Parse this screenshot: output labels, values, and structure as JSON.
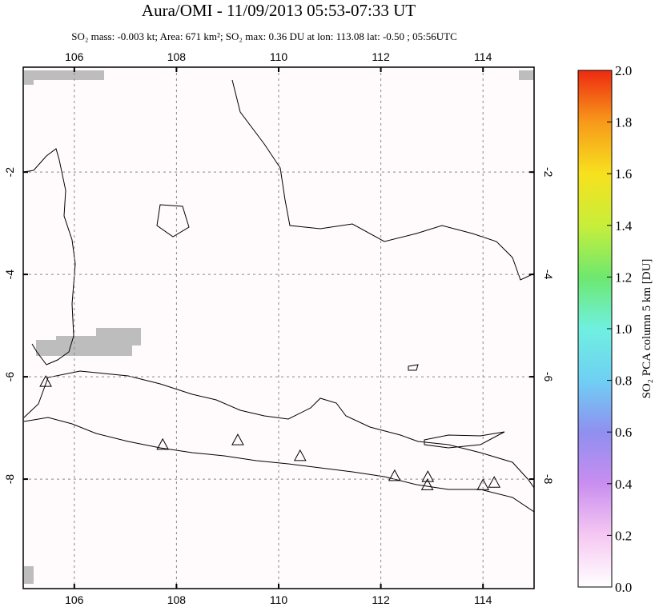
{
  "chart_data": {
    "type": "map",
    "title": "Aura/OMI - 11/09/2013 05:53-07:33 UT",
    "subtitle": "SO₂ mass: -0.003 kt; Area: 671 km²; SO₂ max: 0.36 DU at lon: 113.08 lat: -0.50 ; 05:56UTC",
    "xlim": [
      105,
      115
    ],
    "ylim": [
      -10.14,
      0.05
    ],
    "xticks": [
      106,
      108,
      110,
      112,
      114
    ],
    "yticks": [
      -2,
      -4,
      -6,
      -8
    ],
    "grid": true,
    "volcanoes": {
      "lon": [
        105.44,
        107.73,
        109.2,
        110.42,
        112.27,
        112.92,
        112.91,
        114.0,
        114.22
      ],
      "lat": [
        -6.11,
        -7.34,
        -7.25,
        -7.56,
        -7.95,
        -7.97,
        -8.13,
        -8.13,
        -8.08
      ]
    },
    "colorbar": {
      "label": "SO₂ PCA column 5 km [DU]",
      "lim": [
        0,
        2
      ],
      "ticks": [
        {
          "value": 0,
          "label": "0.0"
        },
        0.2,
        0.4,
        0.6,
        0.8,
        {
          "value": 1,
          "label": "1.0"
        },
        1.2,
        1.4,
        1.6,
        1.8,
        {
          "value": 2,
          "label": "2.0"
        }
      ],
      "colormap": [
        "#ffffff",
        "#f6c8f2",
        "#c98ef0",
        "#8f8ff0",
        "#6fd0f4",
        "#6ff0e0",
        "#6ee86e",
        "#c8ee3a",
        "#f7e11e",
        "#f79a1a",
        "#ee2a10"
      ]
    }
  }
}
